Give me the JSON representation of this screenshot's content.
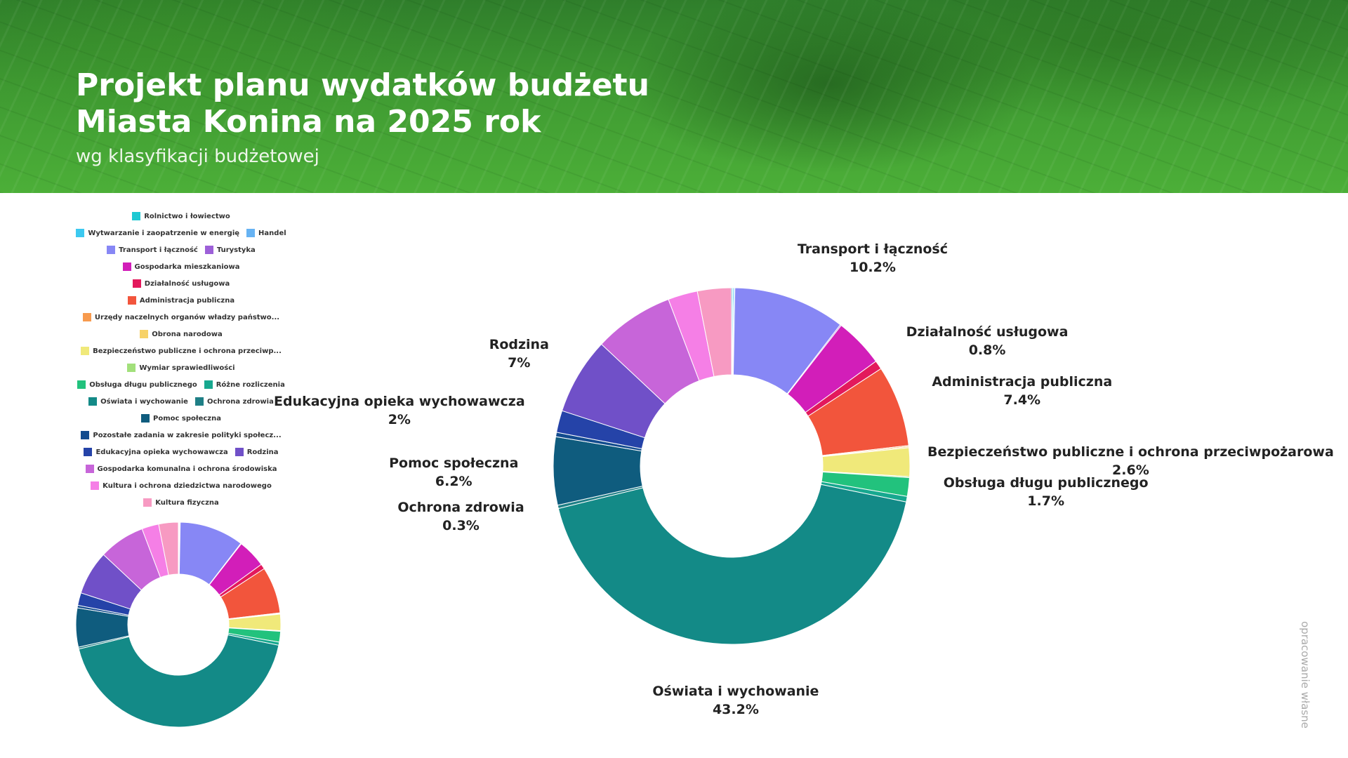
{
  "header": {
    "title_line1": "Projekt planu wydatków budżetu",
    "title_line2": "Miasta Konina na 2025 rok",
    "subtitle": "wg klasyfikacji budżetowej"
  },
  "credit": "opracowanie własne",
  "colors": {
    "banner_green": "#3f9a32",
    "title_text": "#ffffff"
  },
  "chart_data": {
    "type": "pie",
    "variant": "donut",
    "legend_placement": "left",
    "categories": [
      "Rolnictwo i łowiectwo",
      "Wytwarzanie i zaopatrzenie w energię",
      "Handel",
      "Transport i łączność",
      "Turystyka",
      "Gospodarka mieszkaniowa",
      "Działalność usługowa",
      "Administracja publiczna",
      "Urzędy naczelnych organów władzy państwo...",
      "Obrona narodowa",
      "Bezpieczeństwo publiczne i ochrona przeciwp...",
      "Wymiar sprawiedliwości",
      "Obsługa długu publicznego",
      "Różne rozliczenia",
      "Oświata i wychowanie",
      "Ochrona zdrowia",
      "Pomoc społeczna",
      "Pozostałe zadania w zakresie polityki społecz...",
      "Edukacyjna opieka wychowawcza",
      "Rodzina",
      "Gospodarka komunalna i ochrona środowiska",
      "Kultura i ochrona dziedzictwa narodowego",
      "Kultura fizyczna"
    ],
    "values": [
      0.1,
      0.1,
      0.1,
      10.2,
      0.1,
      4.5,
      0.8,
      7.4,
      0.1,
      0.1,
      2.6,
      0.1,
      1.7,
      0.5,
      43.2,
      0.3,
      6.2,
      0.4,
      2,
      7,
      7.3,
      2.7,
      3.1
    ],
    "colors": [
      "#1ec8d2",
      "#3cc9f0",
      "#67b3f3",
      "#8787f5",
      "#9d60d8",
      "#d21eb9",
      "#e3195c",
      "#f2553c",
      "#f79a4e",
      "#f7d268",
      "#f0e97a",
      "#a2e07b",
      "#22c27d",
      "#17a88f",
      "#138a87",
      "#1f7f86",
      "#0f5c7e",
      "#134c8e",
      "#2543a8",
      "#7050c8",
      "#c765d9",
      "#f57fe6",
      "#f79ac2"
    ],
    "labels": [
      {
        "category": "Transport i łączność",
        "name": "Transport i łączność",
        "pct": "10.2%"
      },
      {
        "category": "Działalność usługowa",
        "name": "Działalność usługowa",
        "pct": "0.8%"
      },
      {
        "category": "Administracja publiczna",
        "name": "Administracja publiczna",
        "pct": "7.4%"
      },
      {
        "category": "Bezpieczeństwo publiczne i ochrona przeciwp...",
        "name": "Bezpieczeństwo publiczne i ochrona przeciwpożarowa",
        "pct": "2.6%"
      },
      {
        "category": "Obsługa długu publicznego",
        "name": "Obsługa długu publicznego",
        "pct": "1.7%"
      },
      {
        "category": "Oświata i wychowanie",
        "name": "Oświata i wychowanie",
        "pct": "43.2%"
      },
      {
        "category": "Ochrona zdrowia",
        "name": "Ochrona zdrowia",
        "pct": "0.3%"
      },
      {
        "category": "Pomoc społeczna",
        "name": "Pomoc społeczna",
        "pct": "6.2%"
      },
      {
        "category": "Edukacyjna opieka wychowawcza",
        "name": "Edukacyjna opieka wychowawcza",
        "pct": "2%"
      },
      {
        "category": "Rodzina",
        "name": "Rodzina",
        "pct": "7%"
      }
    ]
  }
}
